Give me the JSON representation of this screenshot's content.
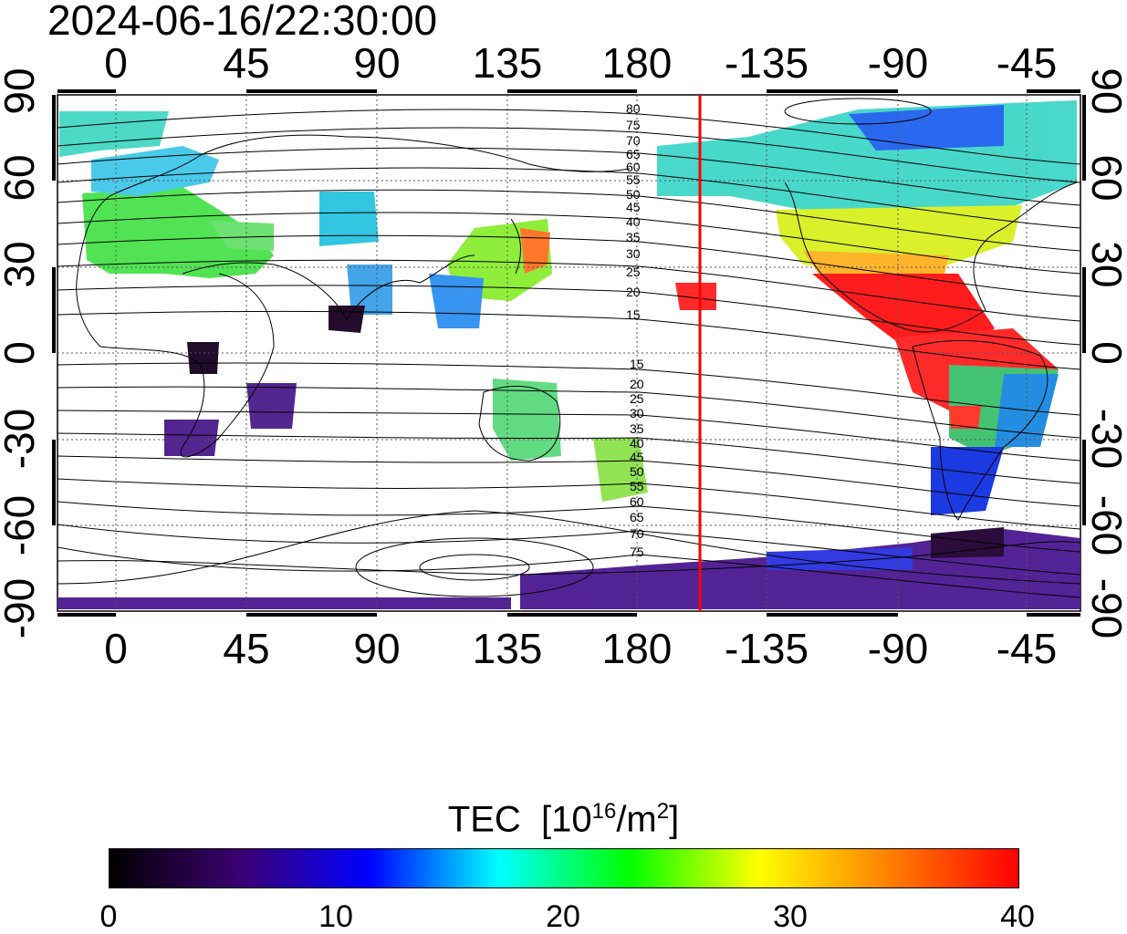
{
  "title": "2024-06-16/22:30:00",
  "axes": {
    "top_ticks": [
      "0",
      "45",
      "90",
      "135",
      "180",
      "-135",
      "-90",
      "-45"
    ],
    "bottom_ticks": [
      "0",
      "45",
      "90",
      "135",
      "180",
      "-135",
      "-90",
      "-45"
    ],
    "left_ticks": [
      "90",
      "60",
      "30",
      "0",
      "-30",
      "-60",
      "-90"
    ],
    "right_ticks": [
      "90",
      "60",
      "30",
      "0",
      "-30",
      "-60",
      "-90"
    ]
  },
  "contour_labels_north": [
    "80",
    "75",
    "70",
    "65",
    "60",
    "55",
    "50",
    "45",
    "40",
    "35",
    "30",
    "25",
    "20",
    "15"
  ],
  "contour_labels_south": [
    "15",
    "20",
    "25",
    "30",
    "35",
    "40",
    "45",
    "50",
    "55",
    "60",
    "65",
    "70",
    "75"
  ],
  "colorbar": {
    "title": "TEC",
    "unit_prefix": "[10",
    "unit_exp": "16",
    "unit_mid": "/m",
    "unit_exp2": "2",
    "unit_suffix": "]",
    "ticks": [
      "0",
      "10",
      "20",
      "30",
      "40"
    ],
    "colors": [
      "#000000",
      "#3c0070",
      "#0000ff",
      "#00ffff",
      "#00ff00",
      "#ffff00",
      "#ff8000",
      "#ff0000"
    ]
  },
  "colors": {
    "terminator_line": "#ff0000",
    "grid": "#555555"
  }
}
